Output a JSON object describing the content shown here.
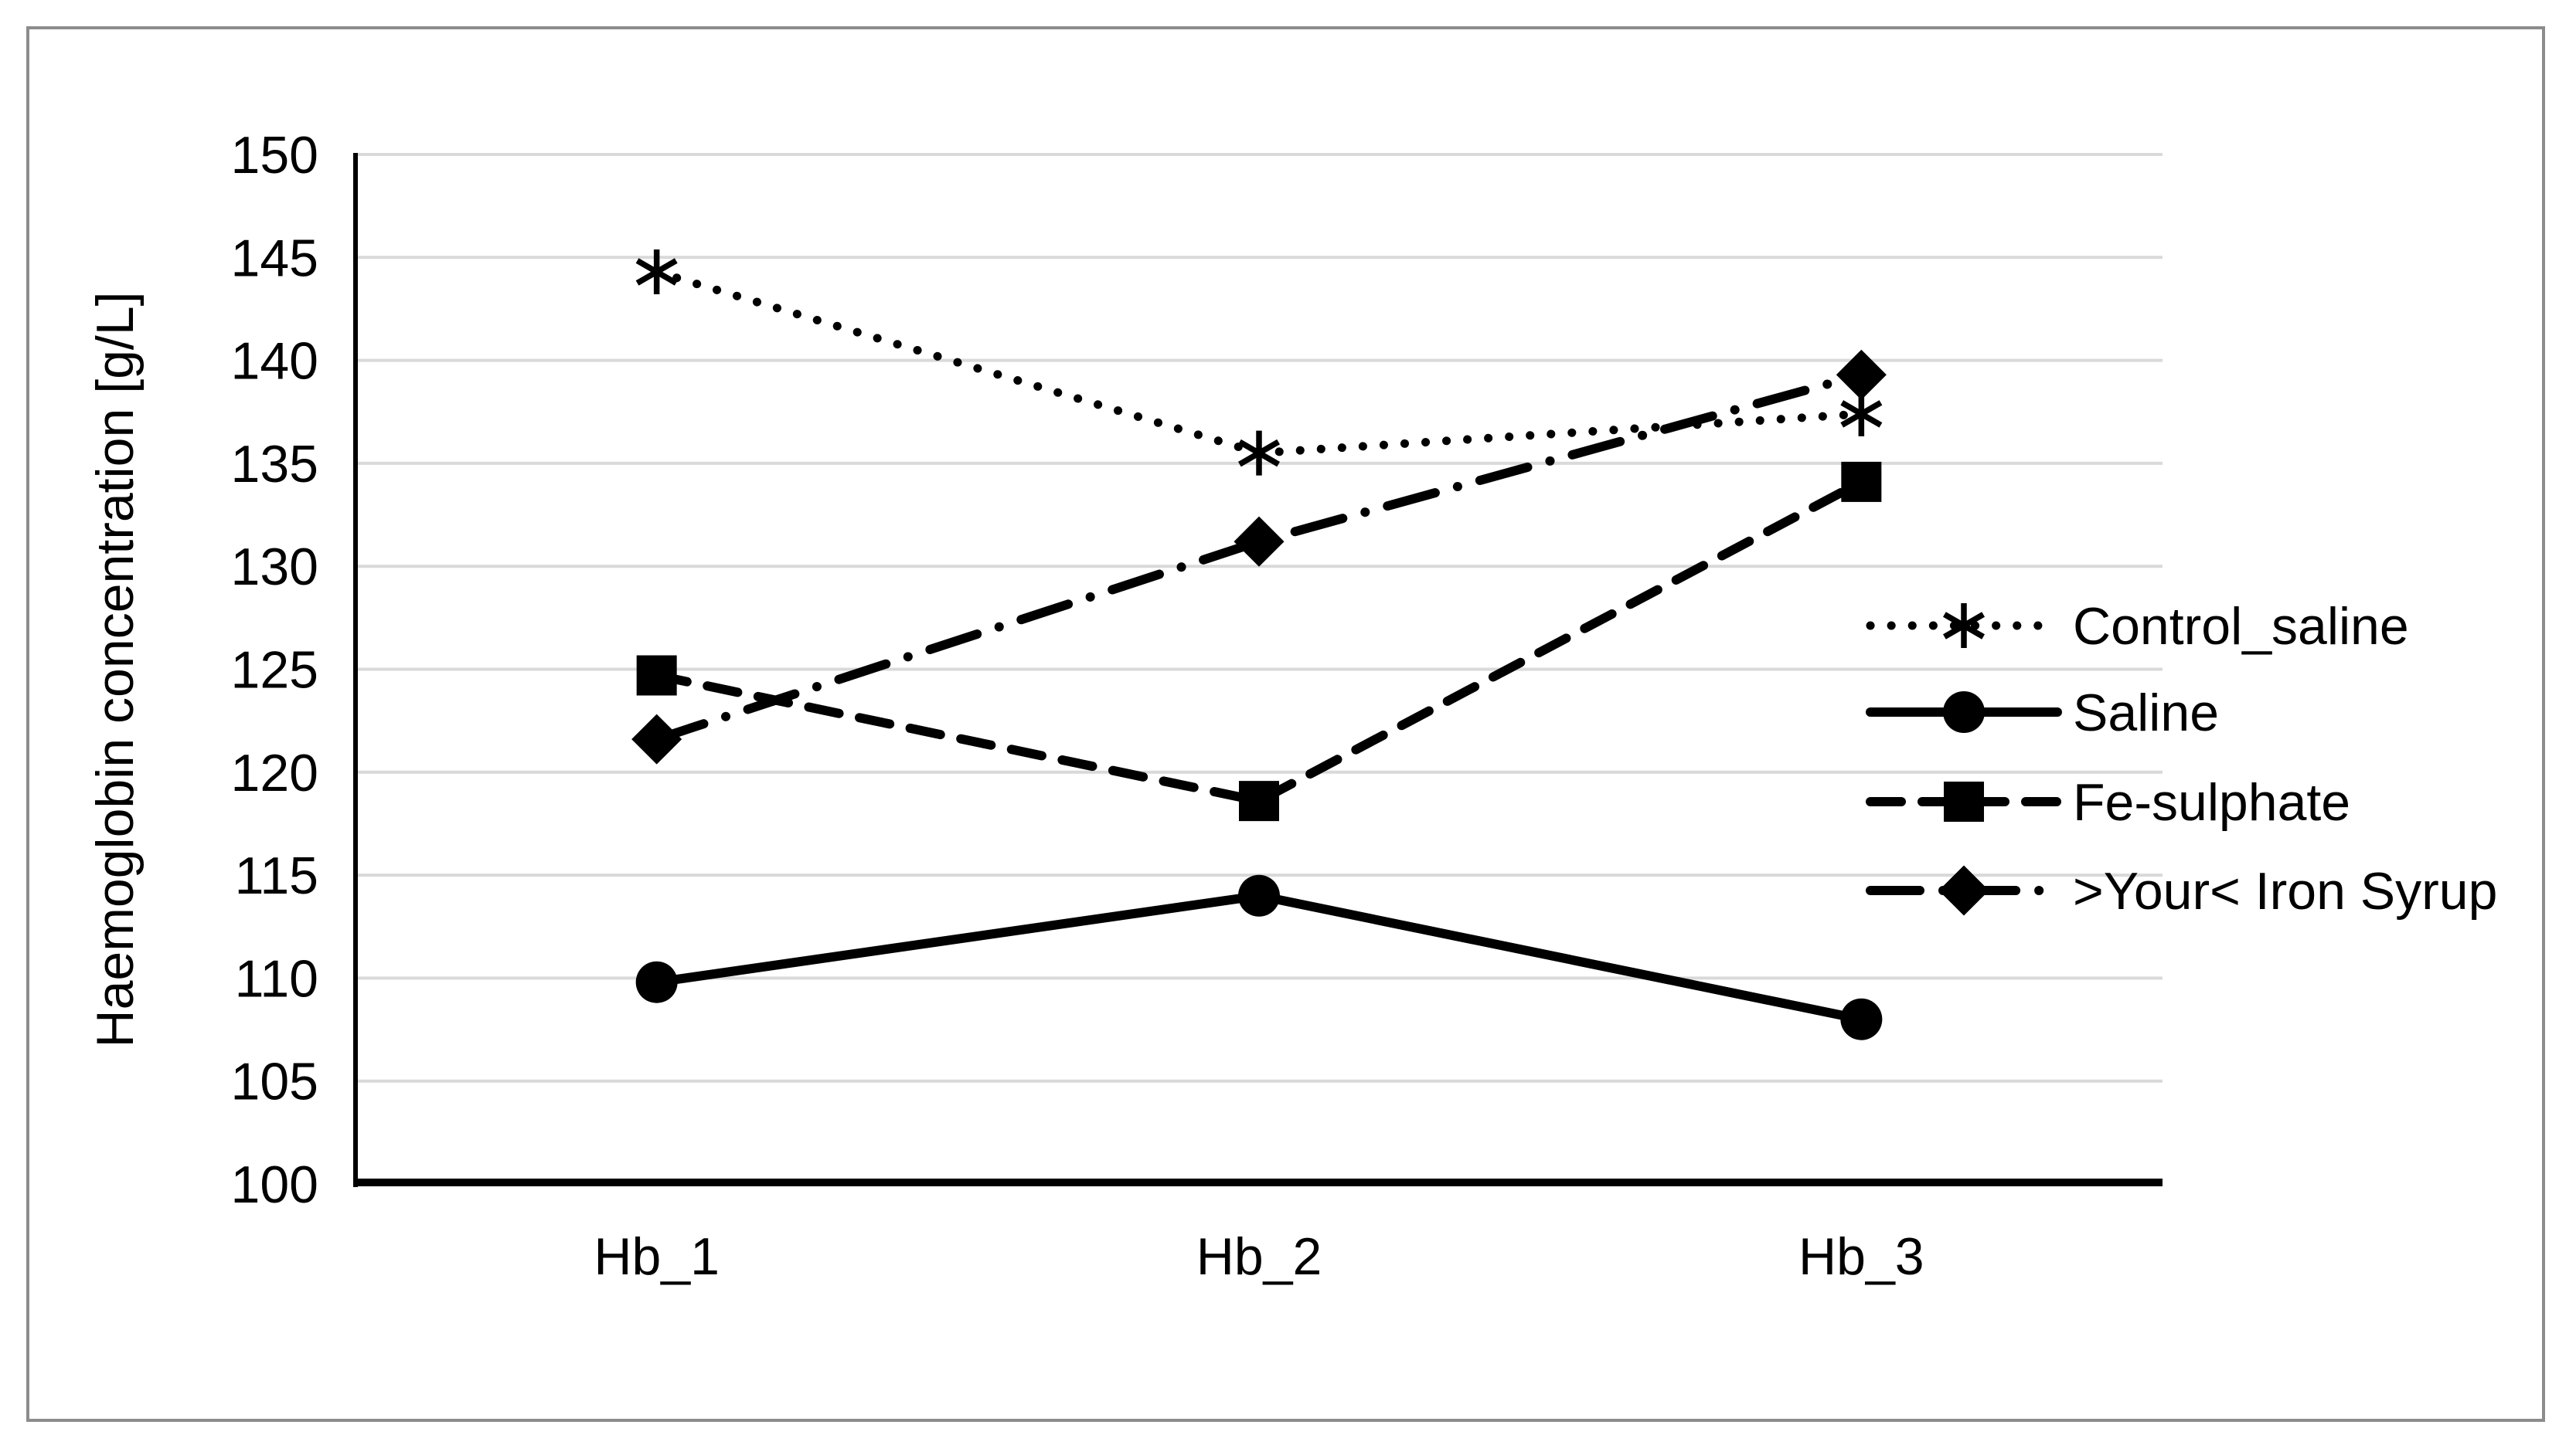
{
  "figure": {
    "background": "#ffffff",
    "border_color": "#8c8c8c"
  },
  "chart_data": {
    "type": "line",
    "title": "",
    "xlabel": "",
    "ylabel": "Haemoglobin concentration [g/L]",
    "categories": [
      "Hb_1",
      "Hb_2",
      "Hb_3"
    ],
    "ylim": [
      100,
      150
    ],
    "ytick_step": 5,
    "yticks": [
      150,
      145,
      140,
      135,
      130,
      125,
      120,
      115,
      110,
      105,
      100
    ],
    "grid": "horizontal-only",
    "gridline_color": "#d9d9d9",
    "axis_color": "#000000",
    "series_color": "#000000",
    "legend_position": "right-inside",
    "series": [
      {
        "name": "Control_saline",
        "values": [
          144.3,
          135.5,
          137.4
        ],
        "line_style": "dotted",
        "marker": "asterisk"
      },
      {
        "name": "Saline",
        "values": [
          109.8,
          114.0,
          108.0
        ],
        "line_style": "solid",
        "marker": "circle"
      },
      {
        "name": "Fe-sulphate",
        "values": [
          124.7,
          118.6,
          134.1
        ],
        "line_style": "dashed",
        "marker": "square"
      },
      {
        "name": ">Your< Iron Syrup",
        "values": [
          121.6,
          131.2,
          139.3
        ],
        "line_style": "dashdot",
        "marker": "diamond"
      }
    ]
  }
}
